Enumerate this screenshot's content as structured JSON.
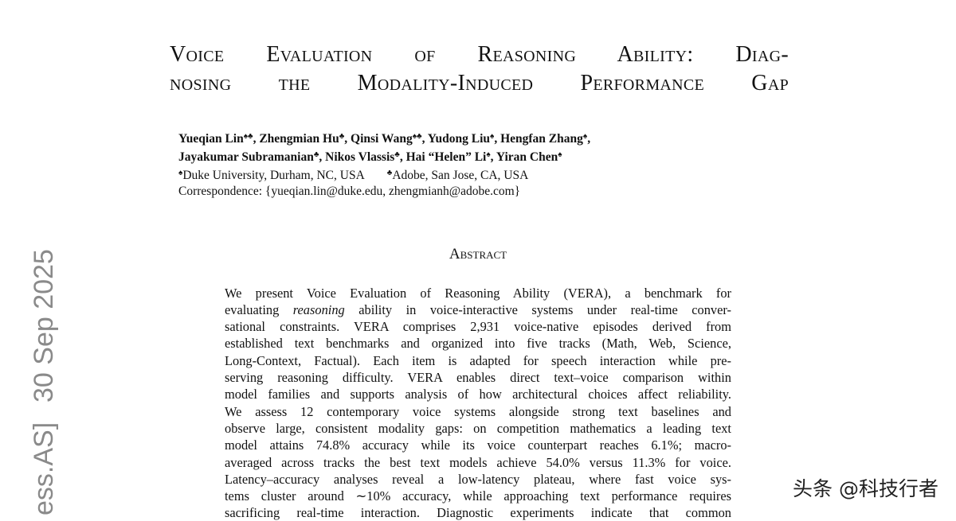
{
  "header": {
    "title_lines": [
      "Voice Evaluation of Reasoning Ability: Diag-",
      "nosing the Modality-Induced Performance Gap"
    ]
  },
  "authors": {
    "lines": [
      [
        {
          "name": "Yueqian Lin",
          "sup": "♠♣"
        },
        {
          "name": ", Zhengmian Hu",
          "sup": "♣"
        },
        {
          "name": ", Qinsi Wang",
          "sup": "♠♣"
        },
        {
          "name": ", Yudong Liu",
          "sup": "♠"
        },
        {
          "name": ", Hengfan Zhang",
          "sup": "♠"
        },
        {
          "name": ","
        }
      ],
      [
        {
          "name": "Jayakumar Subramanian",
          "sup": "♣"
        },
        {
          "name": ", Nikos Vlassis",
          "sup": "♣"
        },
        {
          "name": ", Hai “Helen” Li",
          "sup": "♠"
        },
        {
          "name": ", Yiran Chen",
          "sup": "♠"
        }
      ]
    ],
    "affiliations": [
      {
        "sup": "♠",
        "text": "Duke University, Durham, NC, USA"
      },
      {
        "sup": "♣",
        "text": "Adobe, San Jose, CA, USA"
      }
    ],
    "correspondence": "Correspondence: {yueqian.lin@duke.edu, zhengmianh@adobe.com}"
  },
  "abstract": {
    "heading": "Abstract",
    "lines": [
      [
        {
          "text": "We present Voice Evaluation of Reasoning Ability (VERA), a benchmark for"
        }
      ],
      [
        {
          "text": "evaluating "
        },
        {
          "text": "reasoning",
          "italic": true
        },
        {
          "text": " ability in voice-interactive systems under real-time conver-"
        }
      ],
      [
        {
          "text": "sational constraints. VERA comprises 2,931 voice-native episodes derived from"
        }
      ],
      [
        {
          "text": "established text benchmarks and organized into five tracks (Math, Web, Science,"
        }
      ],
      [
        {
          "text": "Long-Context, Factual). Each item is adapted for speech interaction while pre-"
        }
      ],
      [
        {
          "text": "serving reasoning difficulty. VERA enables direct text–voice comparison within"
        }
      ],
      [
        {
          "text": "model families and supports analysis of how architectural choices affect reliability."
        }
      ],
      [
        {
          "text": "We assess 12 contemporary voice systems alongside strong text baselines and"
        }
      ],
      [
        {
          "text": "observe large, consistent modality gaps: on competition mathematics a leading text"
        }
      ],
      [
        {
          "text": "model attains 74.8% accuracy while its voice counterpart reaches 6.1%; macro-"
        }
      ],
      [
        {
          "text": "averaged across tracks the best text models achieve 54.0% versus 11.3% for voice."
        }
      ],
      [
        {
          "text": "Latency–accuracy analyses reveal a low-latency plateau, where fast voice sys-"
        }
      ],
      [
        {
          "text": "tems cluster around ∼10% accuracy, while approaching text performance requires"
        }
      ],
      [
        {
          "text": "sacrificing real-time interaction. Diagnostic experiments indicate that common"
        }
      ]
    ]
  },
  "arxiv_stamp": {
    "category": "ess.AS]",
    "date": "30 Sep 2025"
  },
  "watermark": "头条 @科技行者"
}
